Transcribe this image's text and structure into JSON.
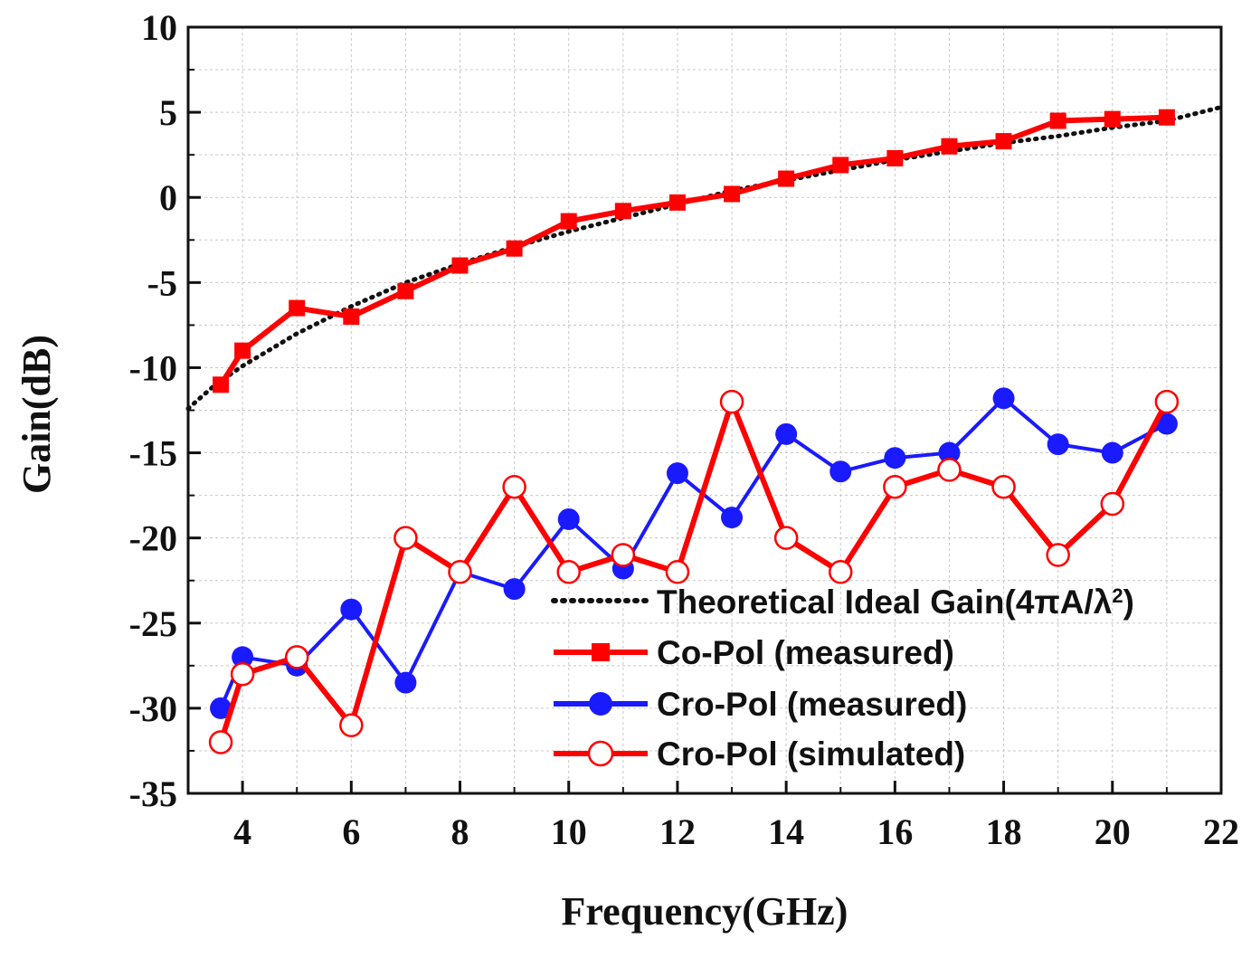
{
  "chart_data": {
    "type": "line",
    "title": "",
    "xlabel": "Frequency(GHz)",
    "ylabel": "Gain(dB)",
    "xlim": [
      3,
      22
    ],
    "ylim": [
      -35,
      10
    ],
    "xticks": [
      4,
      6,
      8,
      10,
      12,
      14,
      16,
      18,
      20,
      22
    ],
    "yticks": [
      10,
      5,
      0,
      -5,
      -10,
      -15,
      -20,
      -25,
      -30,
      -35
    ],
    "grid": true,
    "legend_position": "lower-right",
    "series": [
      {
        "name": "Theoretical Ideal Gain",
        "legend_prefix": "Theoretical Ideal Gain(4πA/λ",
        "legend_sup": "2",
        "legend_suffix": ")",
        "color": "#111111",
        "style": "dotted",
        "marker": "none",
        "x": [
          3,
          3.5,
          4,
          5,
          6,
          7,
          8,
          9,
          10,
          11,
          12,
          13,
          14,
          15,
          16,
          17,
          18,
          19,
          20,
          21,
          22
        ],
        "y": [
          -12.4,
          -11.0,
          -9.9,
          -8.0,
          -6.4,
          -5.0,
          -3.9,
          -2.9,
          -2.0,
          -1.2,
          -0.4,
          0.4,
          1.0,
          1.6,
          2.2,
          2.7,
          3.2,
          3.6,
          4.1,
          4.5,
          5.3
        ]
      },
      {
        "name": "Co-Pol (measured)",
        "color": "#ff0000",
        "style": "solid",
        "marker": "filled-square",
        "x": [
          3.6,
          4,
          5,
          6,
          7,
          8,
          9,
          10,
          11,
          12,
          13,
          14,
          15,
          16,
          17,
          18,
          19,
          20,
          21
        ],
        "y": [
          -11,
          -9,
          -6.5,
          -7,
          -5.5,
          -4,
          -3,
          -1.4,
          -0.8,
          -0.3,
          0.2,
          1.1,
          1.9,
          2.3,
          3,
          3.3,
          4.5,
          4.6,
          4.7
        ]
      },
      {
        "name": "Cro-Pol (measured)",
        "color": "#1a1aff",
        "style": "solid",
        "marker": "filled-circle",
        "x": [
          3.6,
          4,
          5,
          6,
          7,
          8,
          9,
          10,
          11,
          12,
          13,
          14,
          15,
          16,
          17,
          18,
          19,
          20,
          21
        ],
        "y": [
          -30,
          -27,
          -27.5,
          -24.2,
          -28.5,
          -22,
          -23,
          -18.9,
          -21.8,
          -16.2,
          -18.8,
          -13.9,
          -16.1,
          -15.3,
          -15,
          -11.8,
          -14.5,
          -15,
          -13.3
        ]
      },
      {
        "name": "Cro-Pol (simulated)",
        "color": "#ff0000",
        "style": "solid",
        "marker": "open-circle",
        "x": [
          3.6,
          4,
          5,
          6,
          7,
          8,
          9,
          10,
          11,
          12,
          13,
          14,
          15,
          16,
          17,
          18,
          19,
          20,
          21
        ],
        "y": [
          -32,
          -28,
          -27,
          -31,
          -20,
          -22,
          -17,
          -22,
          -21,
          -22,
          -12,
          -20,
          -22,
          -17,
          -16,
          -17,
          -21,
          -18,
          -12
        ]
      }
    ]
  }
}
